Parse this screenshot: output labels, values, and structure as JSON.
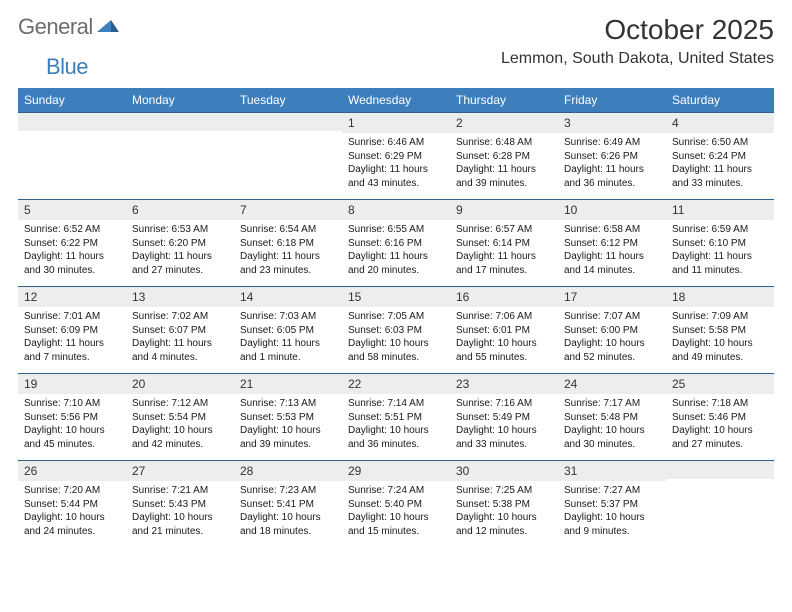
{
  "logo": {
    "text1": "General",
    "text2": "Blue"
  },
  "title": "October 2025",
  "location": "Lemmon, South Dakota, United States",
  "colors": {
    "header_bg": "#3d7ebd",
    "header_text": "#ffffff",
    "daynum_bg": "#eceded",
    "week_border": "#325f87",
    "body_text": "#1a1a1a",
    "logo_gray": "#6e6e6e",
    "logo_blue": "#3d7ebd"
  },
  "day_names": [
    "Sunday",
    "Monday",
    "Tuesday",
    "Wednesday",
    "Thursday",
    "Friday",
    "Saturday"
  ],
  "weeks": [
    [
      {
        "day": "",
        "sunrise": "",
        "sunset": "",
        "daylight": ""
      },
      {
        "day": "",
        "sunrise": "",
        "sunset": "",
        "daylight": ""
      },
      {
        "day": "",
        "sunrise": "",
        "sunset": "",
        "daylight": ""
      },
      {
        "day": "1",
        "sunrise": "Sunrise: 6:46 AM",
        "sunset": "Sunset: 6:29 PM",
        "daylight": "Daylight: 11 hours and 43 minutes."
      },
      {
        "day": "2",
        "sunrise": "Sunrise: 6:48 AM",
        "sunset": "Sunset: 6:28 PM",
        "daylight": "Daylight: 11 hours and 39 minutes."
      },
      {
        "day": "3",
        "sunrise": "Sunrise: 6:49 AM",
        "sunset": "Sunset: 6:26 PM",
        "daylight": "Daylight: 11 hours and 36 minutes."
      },
      {
        "day": "4",
        "sunrise": "Sunrise: 6:50 AM",
        "sunset": "Sunset: 6:24 PM",
        "daylight": "Daylight: 11 hours and 33 minutes."
      }
    ],
    [
      {
        "day": "5",
        "sunrise": "Sunrise: 6:52 AM",
        "sunset": "Sunset: 6:22 PM",
        "daylight": "Daylight: 11 hours and 30 minutes."
      },
      {
        "day": "6",
        "sunrise": "Sunrise: 6:53 AM",
        "sunset": "Sunset: 6:20 PM",
        "daylight": "Daylight: 11 hours and 27 minutes."
      },
      {
        "day": "7",
        "sunrise": "Sunrise: 6:54 AM",
        "sunset": "Sunset: 6:18 PM",
        "daylight": "Daylight: 11 hours and 23 minutes."
      },
      {
        "day": "8",
        "sunrise": "Sunrise: 6:55 AM",
        "sunset": "Sunset: 6:16 PM",
        "daylight": "Daylight: 11 hours and 20 minutes."
      },
      {
        "day": "9",
        "sunrise": "Sunrise: 6:57 AM",
        "sunset": "Sunset: 6:14 PM",
        "daylight": "Daylight: 11 hours and 17 minutes."
      },
      {
        "day": "10",
        "sunrise": "Sunrise: 6:58 AM",
        "sunset": "Sunset: 6:12 PM",
        "daylight": "Daylight: 11 hours and 14 minutes."
      },
      {
        "day": "11",
        "sunrise": "Sunrise: 6:59 AM",
        "sunset": "Sunset: 6:10 PM",
        "daylight": "Daylight: 11 hours and 11 minutes."
      }
    ],
    [
      {
        "day": "12",
        "sunrise": "Sunrise: 7:01 AM",
        "sunset": "Sunset: 6:09 PM",
        "daylight": "Daylight: 11 hours and 7 minutes."
      },
      {
        "day": "13",
        "sunrise": "Sunrise: 7:02 AM",
        "sunset": "Sunset: 6:07 PM",
        "daylight": "Daylight: 11 hours and 4 minutes."
      },
      {
        "day": "14",
        "sunrise": "Sunrise: 7:03 AM",
        "sunset": "Sunset: 6:05 PM",
        "daylight": "Daylight: 11 hours and 1 minute."
      },
      {
        "day": "15",
        "sunrise": "Sunrise: 7:05 AM",
        "sunset": "Sunset: 6:03 PM",
        "daylight": "Daylight: 10 hours and 58 minutes."
      },
      {
        "day": "16",
        "sunrise": "Sunrise: 7:06 AM",
        "sunset": "Sunset: 6:01 PM",
        "daylight": "Daylight: 10 hours and 55 minutes."
      },
      {
        "day": "17",
        "sunrise": "Sunrise: 7:07 AM",
        "sunset": "Sunset: 6:00 PM",
        "daylight": "Daylight: 10 hours and 52 minutes."
      },
      {
        "day": "18",
        "sunrise": "Sunrise: 7:09 AM",
        "sunset": "Sunset: 5:58 PM",
        "daylight": "Daylight: 10 hours and 49 minutes."
      }
    ],
    [
      {
        "day": "19",
        "sunrise": "Sunrise: 7:10 AM",
        "sunset": "Sunset: 5:56 PM",
        "daylight": "Daylight: 10 hours and 45 minutes."
      },
      {
        "day": "20",
        "sunrise": "Sunrise: 7:12 AM",
        "sunset": "Sunset: 5:54 PM",
        "daylight": "Daylight: 10 hours and 42 minutes."
      },
      {
        "day": "21",
        "sunrise": "Sunrise: 7:13 AM",
        "sunset": "Sunset: 5:53 PM",
        "daylight": "Daylight: 10 hours and 39 minutes."
      },
      {
        "day": "22",
        "sunrise": "Sunrise: 7:14 AM",
        "sunset": "Sunset: 5:51 PM",
        "daylight": "Daylight: 10 hours and 36 minutes."
      },
      {
        "day": "23",
        "sunrise": "Sunrise: 7:16 AM",
        "sunset": "Sunset: 5:49 PM",
        "daylight": "Daylight: 10 hours and 33 minutes."
      },
      {
        "day": "24",
        "sunrise": "Sunrise: 7:17 AM",
        "sunset": "Sunset: 5:48 PM",
        "daylight": "Daylight: 10 hours and 30 minutes."
      },
      {
        "day": "25",
        "sunrise": "Sunrise: 7:18 AM",
        "sunset": "Sunset: 5:46 PM",
        "daylight": "Daylight: 10 hours and 27 minutes."
      }
    ],
    [
      {
        "day": "26",
        "sunrise": "Sunrise: 7:20 AM",
        "sunset": "Sunset: 5:44 PM",
        "daylight": "Daylight: 10 hours and 24 minutes."
      },
      {
        "day": "27",
        "sunrise": "Sunrise: 7:21 AM",
        "sunset": "Sunset: 5:43 PM",
        "daylight": "Daylight: 10 hours and 21 minutes."
      },
      {
        "day": "28",
        "sunrise": "Sunrise: 7:23 AM",
        "sunset": "Sunset: 5:41 PM",
        "daylight": "Daylight: 10 hours and 18 minutes."
      },
      {
        "day": "29",
        "sunrise": "Sunrise: 7:24 AM",
        "sunset": "Sunset: 5:40 PM",
        "daylight": "Daylight: 10 hours and 15 minutes."
      },
      {
        "day": "30",
        "sunrise": "Sunrise: 7:25 AM",
        "sunset": "Sunset: 5:38 PM",
        "daylight": "Daylight: 10 hours and 12 minutes."
      },
      {
        "day": "31",
        "sunrise": "Sunrise: 7:27 AM",
        "sunset": "Sunset: 5:37 PM",
        "daylight": "Daylight: 10 hours and 9 minutes."
      },
      {
        "day": "",
        "sunrise": "",
        "sunset": "",
        "daylight": ""
      }
    ]
  ]
}
